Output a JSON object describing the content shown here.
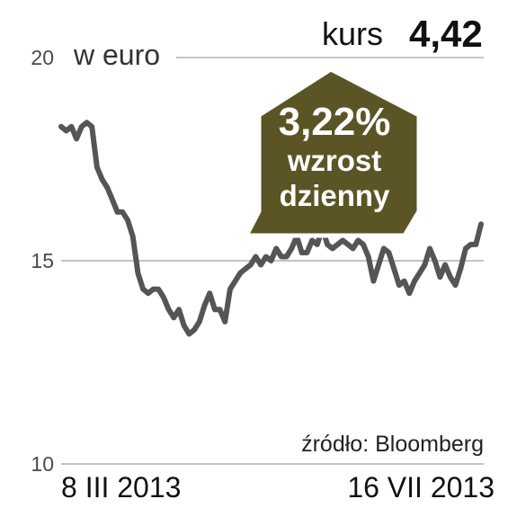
{
  "header": {
    "kurs_label": "kurs",
    "kurs_value": "4,42"
  },
  "badge": {
    "percent": "3,22%",
    "line1": "wzrost",
    "line2": "dzienny",
    "color": "#5b5526"
  },
  "source": "źródło: Bloomberg",
  "chart_data": {
    "type": "line",
    "unit_label": "w euro",
    "ylim": [
      10,
      20
    ],
    "yticks": [
      {
        "value": 20,
        "label": "20"
      },
      {
        "value": 15,
        "label": "15"
      },
      {
        "value": 10,
        "label": "10"
      }
    ],
    "x_start_label": "8 III 2013",
    "x_end_label": "16 VII 2013",
    "grid": true,
    "line_color": "#555555",
    "grid_color": "#b0b0b0",
    "series": [
      {
        "values": [
          18.3,
          18.2,
          18.3,
          18.0,
          18.3,
          18.4,
          18.3,
          17.3,
          17.0,
          16.8,
          16.5,
          16.2,
          16.2,
          16.0,
          15.6,
          14.7,
          14.3,
          14.2,
          14.3,
          14.3,
          14.1,
          13.8,
          13.6,
          13.8,
          13.4,
          13.2,
          13.3,
          13.5,
          13.9,
          14.2,
          13.8,
          13.8,
          13.5,
          14.3,
          14.5,
          14.7,
          14.8,
          14.9,
          15.1,
          14.9,
          15.1,
          15.0,
          15.3,
          15.1,
          15.1,
          15.3,
          15.6,
          15.2,
          15.2,
          15.5,
          15.4,
          15.8,
          15.4,
          15.3,
          15.4,
          15.5,
          15.4,
          15.3,
          15.5,
          15.4,
          15.1,
          14.5,
          14.9,
          15.3,
          15.2,
          14.8,
          14.4,
          14.5,
          14.2,
          14.5,
          14.7,
          14.9,
          15.3,
          15.0,
          14.6,
          14.9,
          14.6,
          14.4,
          14.8,
          15.3,
          15.4,
          15.4,
          15.9
        ]
      }
    ]
  }
}
